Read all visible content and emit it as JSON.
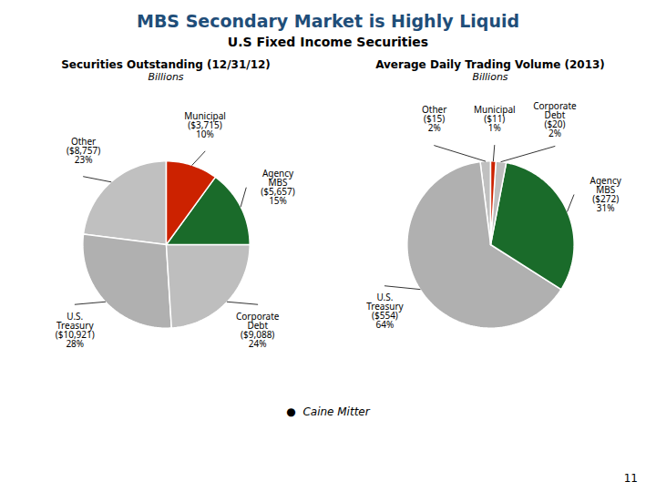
{
  "title": "MBS Secondary Market is Highly Liquid",
  "subtitle": "U.S Fixed Income Securities",
  "annotations": [
    "●  Caine Mitter",
    "11"
  ],
  "chart_data": [
    {
      "type": "pie",
      "title": "Securities Outstanding (12/31/12)",
      "subtitle": "Billions",
      "categories": [
        "Other",
        "U.S.\nTreasury",
        "Corporate\nDebt",
        "Agency\nMBS",
        "Municipal"
      ],
      "values": [
        23,
        28,
        24,
        15,
        10
      ],
      "value_labels": [
        "23%",
        "28%",
        "24%",
        "15%",
        "10%"
      ],
      "amount_labels": [
        "($8,757)",
        "($10,921)",
        "($9,088)",
        "($5,657)",
        "($3,715)"
      ],
      "colors": [
        "#c0c0c0",
        "#b0b0b0",
        "#bebebe",
        "#1a6b2a",
        "#cc2200"
      ],
      "data_labels": true
    },
    {
      "type": "pie",
      "title": "Average Daily Trading Volume (2013)",
      "subtitle": "Billions",
      "categories": [
        "Other",
        "U.S.\nTreasury",
        "Agency\nMBS",
        "Corporate\nDebt",
        "Municipal"
      ],
      "values": [
        2,
        64,
        31,
        2,
        1
      ],
      "value_labels": [
        "2%",
        "64%",
        "31%",
        "2%",
        "1%"
      ],
      "amount_labels": [
        "($15)",
        "($554)",
        "($272)",
        "($20)",
        "($11)"
      ],
      "colors": [
        "#c0c0c0",
        "#b0b0b0",
        "#1a6b2a",
        "#bebebe",
        "#cc2200"
      ],
      "data_labels": true
    }
  ]
}
